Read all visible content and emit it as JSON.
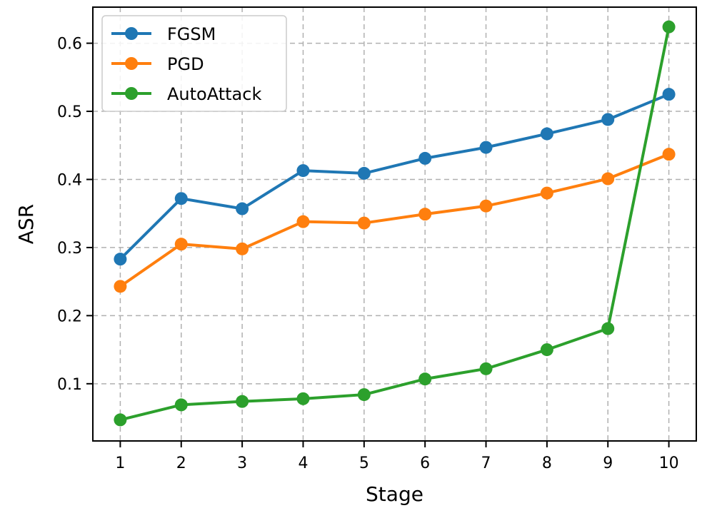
{
  "chart_data": {
    "type": "line",
    "xlabel": "Stage",
    "ylabel": "ASR",
    "x": [
      1,
      2,
      3,
      4,
      5,
      6,
      7,
      8,
      9,
      10
    ],
    "xticks": [
      1,
      2,
      3,
      4,
      5,
      6,
      7,
      8,
      9,
      10
    ],
    "xlim": [
      0.55,
      10.45
    ],
    "yticks": [
      0.1,
      0.2,
      0.3,
      0.4,
      0.5,
      0.6
    ],
    "ylim": [
      0.016,
      0.653
    ],
    "grid": true,
    "legend_position": "top-left",
    "series": [
      {
        "name": "FGSM",
        "color": "#1f77b4",
        "values": [
          0.283,
          0.372,
          0.357,
          0.413,
          0.409,
          0.431,
          0.447,
          0.467,
          0.488,
          0.525
        ]
      },
      {
        "name": "PGD",
        "color": "#ff7f0e",
        "values": [
          0.243,
          0.305,
          0.298,
          0.338,
          0.336,
          0.349,
          0.361,
          0.38,
          0.401,
          0.437
        ]
      },
      {
        "name": "AutoAttack",
        "color": "#2ca02c",
        "values": [
          0.047,
          0.069,
          0.074,
          0.078,
          0.084,
          0.107,
          0.122,
          0.15,
          0.181,
          0.624
        ]
      }
    ]
  }
}
